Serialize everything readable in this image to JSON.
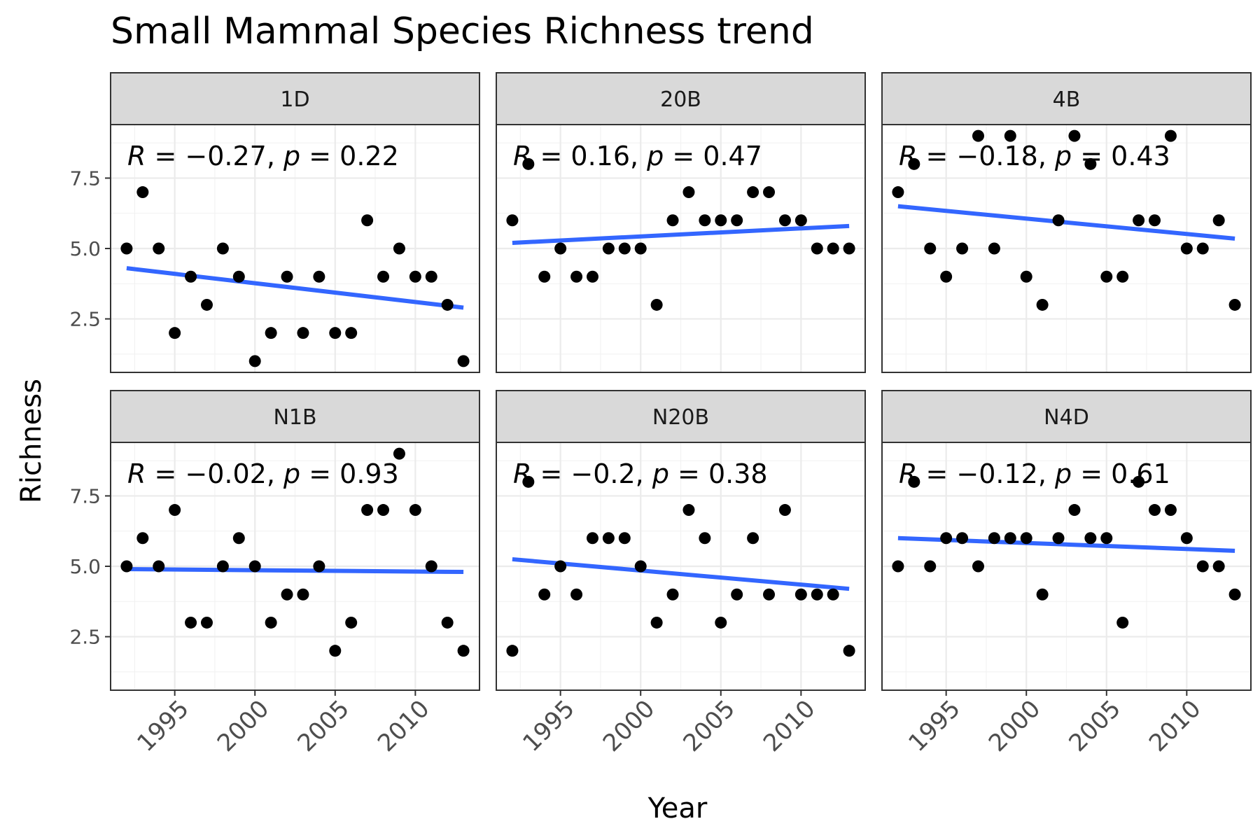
{
  "chart_data": {
    "type": "scatter",
    "title": "Small Mammal Species Richness trend",
    "xlabel": "Year",
    "ylabel": "Richness",
    "xlim": [
      1991,
      2014
    ],
    "ylim": [
      0.6,
      9.4
    ],
    "x_ticks": [
      1995,
      2000,
      2005,
      2010
    ],
    "y_ticks": [
      2.5,
      5.0,
      7.5
    ],
    "y_tick_labels": [
      "2.5",
      "5.0",
      "7.5"
    ],
    "grid": true,
    "point_color": "#000000",
    "line_color": "#3366ff",
    "strip_fill": "#d9d9d9",
    "panels": [
      {
        "name": "1D",
        "stat_R": "−0.27",
        "stat_p": "0.22",
        "points": [
          [
            1992,
            5
          ],
          [
            1993,
            7
          ],
          [
            1994,
            5
          ],
          [
            1995,
            2
          ],
          [
            1996,
            4
          ],
          [
            1997,
            3
          ],
          [
            1998,
            5
          ],
          [
            1999,
            4
          ],
          [
            2000,
            1
          ],
          [
            2001,
            2
          ],
          [
            2002,
            4
          ],
          [
            2003,
            2
          ],
          [
            2004,
            4
          ],
          [
            2005,
            2
          ],
          [
            2006,
            2
          ],
          [
            2007,
            6
          ],
          [
            2008,
            4
          ],
          [
            2009,
            5
          ],
          [
            2010,
            4
          ],
          [
            2011,
            4
          ],
          [
            2012,
            3
          ],
          [
            2013,
            1
          ]
        ],
        "trend": [
          [
            1992,
            4.3
          ],
          [
            2013,
            2.9
          ]
        ]
      },
      {
        "name": "20B",
        "stat_R": "0.16",
        "stat_p": "0.47",
        "points": [
          [
            1992,
            6
          ],
          [
            1993,
            8
          ],
          [
            1994,
            4
          ],
          [
            1995,
            5
          ],
          [
            1996,
            4
          ],
          [
            1997,
            4
          ],
          [
            1998,
            5
          ],
          [
            1999,
            5
          ],
          [
            2000,
            5
          ],
          [
            2001,
            3
          ],
          [
            2002,
            6
          ],
          [
            2003,
            7
          ],
          [
            2004,
            6
          ],
          [
            2005,
            6
          ],
          [
            2006,
            6
          ],
          [
            2007,
            7
          ],
          [
            2008,
            7
          ],
          [
            2009,
            6
          ],
          [
            2010,
            6
          ],
          [
            2011,
            5
          ],
          [
            2012,
            5
          ],
          [
            2013,
            5
          ]
        ],
        "trend": [
          [
            1992,
            5.2
          ],
          [
            2013,
            5.8
          ]
        ]
      },
      {
        "name": "4B",
        "stat_R": "−0.18",
        "stat_p": "0.43",
        "points": [
          [
            1992,
            7
          ],
          [
            1993,
            8
          ],
          [
            1994,
            5
          ],
          [
            1995,
            4
          ],
          [
            1996,
            5
          ],
          [
            1997,
            9
          ],
          [
            1998,
            5
          ],
          [
            1999,
            9
          ],
          [
            2000,
            4
          ],
          [
            2001,
            3
          ],
          [
            2002,
            6
          ],
          [
            2003,
            9
          ],
          [
            2004,
            8
          ],
          [
            2005,
            4
          ],
          [
            2006,
            4
          ],
          [
            2007,
            6
          ],
          [
            2008,
            6
          ],
          [
            2009,
            9
          ],
          [
            2010,
            5
          ],
          [
            2011,
            5
          ],
          [
            2012,
            6
          ],
          [
            2013,
            3
          ]
        ],
        "trend": [
          [
            1992,
            6.5
          ],
          [
            2013,
            5.35
          ]
        ]
      },
      {
        "name": "N1B",
        "stat_R": "−0.02",
        "stat_p": "0.93",
        "points": [
          [
            1992,
            5
          ],
          [
            1993,
            6
          ],
          [
            1994,
            5
          ],
          [
            1995,
            7
          ],
          [
            1996,
            3
          ],
          [
            1997,
            3
          ],
          [
            1998,
            5
          ],
          [
            1999,
            6
          ],
          [
            2000,
            5
          ],
          [
            2001,
            3
          ],
          [
            2002,
            4
          ],
          [
            2003,
            4
          ],
          [
            2004,
            5
          ],
          [
            2005,
            2
          ],
          [
            2006,
            3
          ],
          [
            2007,
            7
          ],
          [
            2008,
            7
          ],
          [
            2009,
            9
          ],
          [
            2010,
            7
          ],
          [
            2011,
            5
          ],
          [
            2012,
            3
          ],
          [
            2013,
            2
          ]
        ],
        "trend": [
          [
            1992,
            4.9
          ],
          [
            2013,
            4.8
          ]
        ]
      },
      {
        "name": "N20B",
        "stat_R": "−0.2",
        "stat_p": "0.38",
        "points": [
          [
            1992,
            2
          ],
          [
            1993,
            8
          ],
          [
            1994,
            4
          ],
          [
            1995,
            5
          ],
          [
            1996,
            4
          ],
          [
            1997,
            6
          ],
          [
            1998,
            6
          ],
          [
            1999,
            6
          ],
          [
            2000,
            5
          ],
          [
            2001,
            3
          ],
          [
            2002,
            4
          ],
          [
            2003,
            7
          ],
          [
            2004,
            6
          ],
          [
            2005,
            3
          ],
          [
            2006,
            4
          ],
          [
            2007,
            6
          ],
          [
            2008,
            4
          ],
          [
            2009,
            7
          ],
          [
            2010,
            4
          ],
          [
            2011,
            4
          ],
          [
            2012,
            4
          ],
          [
            2013,
            2
          ]
        ],
        "trend": [
          [
            1992,
            5.25
          ],
          [
            2013,
            4.2
          ]
        ]
      },
      {
        "name": "N4D",
        "stat_R": "−0.12",
        "stat_p": "0.61",
        "points": [
          [
            1992,
            5
          ],
          [
            1993,
            8
          ],
          [
            1994,
            5
          ],
          [
            1995,
            6
          ],
          [
            1996,
            6
          ],
          [
            1997,
            5
          ],
          [
            1998,
            6
          ],
          [
            1999,
            6
          ],
          [
            2000,
            6
          ],
          [
            2001,
            4
          ],
          [
            2002,
            6
          ],
          [
            2003,
            7
          ],
          [
            2004,
            6
          ],
          [
            2005,
            6
          ],
          [
            2006,
            3
          ],
          [
            2007,
            8
          ],
          [
            2008,
            7
          ],
          [
            2009,
            7
          ],
          [
            2010,
            6
          ],
          [
            2011,
            5
          ],
          [
            2012,
            5
          ],
          [
            2013,
            4
          ]
        ],
        "trend": [
          [
            1992,
            6.0
          ],
          [
            2013,
            5.55
          ]
        ]
      }
    ]
  }
}
